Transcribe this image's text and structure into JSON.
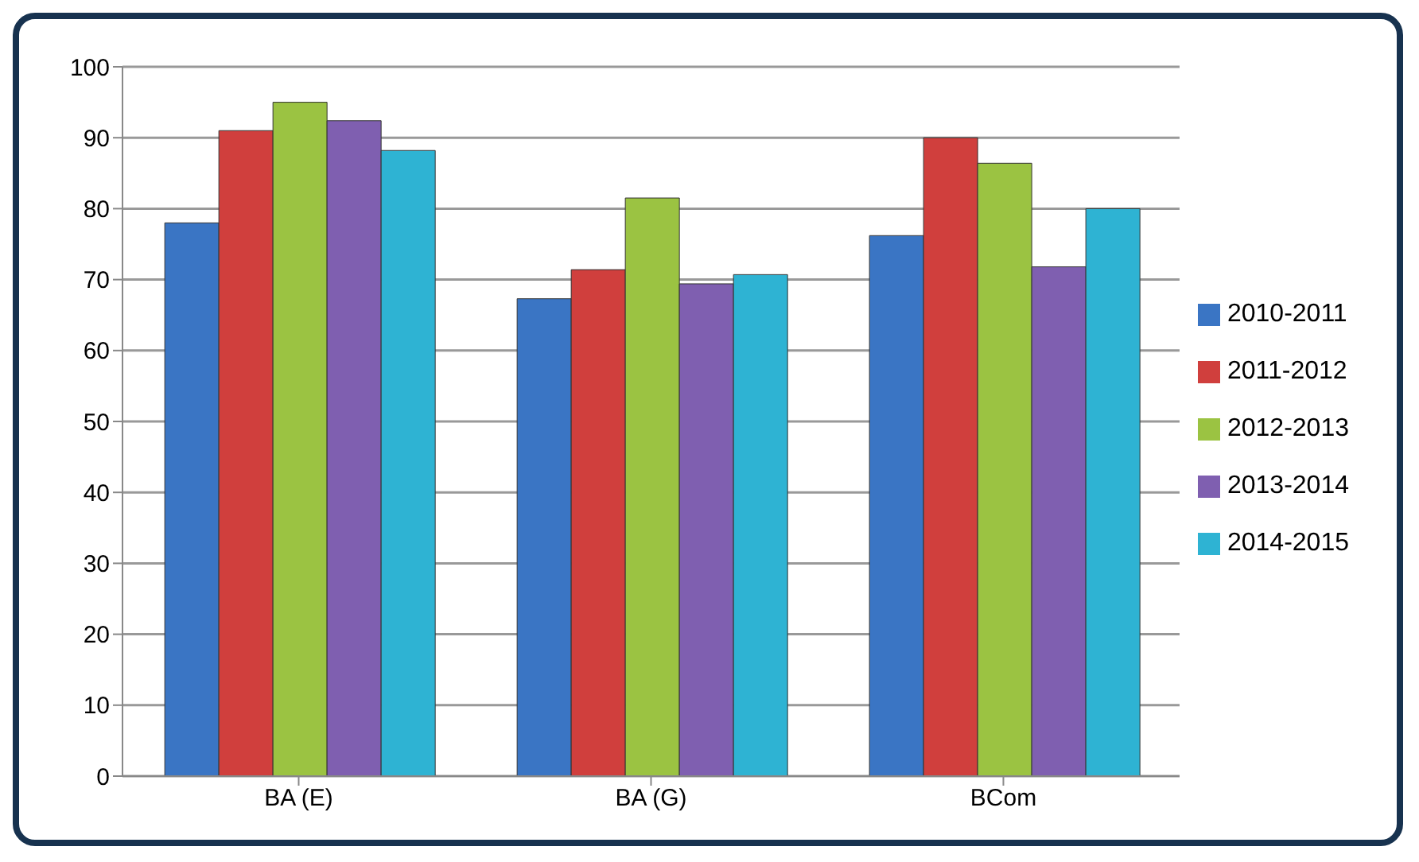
{
  "chart_data": {
    "type": "bar",
    "categories": [
      "BA (E)",
      "BA (G)",
      "BCom"
    ],
    "series": [
      {
        "name": "2010-2011",
        "color": "#3a75c4",
        "values": [
          78.0,
          67.3,
          76.2
        ]
      },
      {
        "name": "2011-2012",
        "color": "#d03f3d",
        "values": [
          91.0,
          71.4,
          90.0
        ]
      },
      {
        "name": "2012-2013",
        "color": "#9bc342",
        "values": [
          95.0,
          81.5,
          86.4
        ]
      },
      {
        "name": "2013-2014",
        "color": "#7f5fb0",
        "values": [
          92.4,
          69.4,
          71.8
        ]
      },
      {
        "name": "2014-2015",
        "color": "#2eb3d3",
        "values": [
          88.2,
          70.7,
          80.0
        ]
      }
    ],
    "ylim": [
      0,
      100
    ],
    "yticks": [
      0,
      10,
      20,
      30,
      40,
      50,
      60,
      70,
      80,
      90,
      100
    ],
    "grid": "y",
    "legend": "right"
  }
}
